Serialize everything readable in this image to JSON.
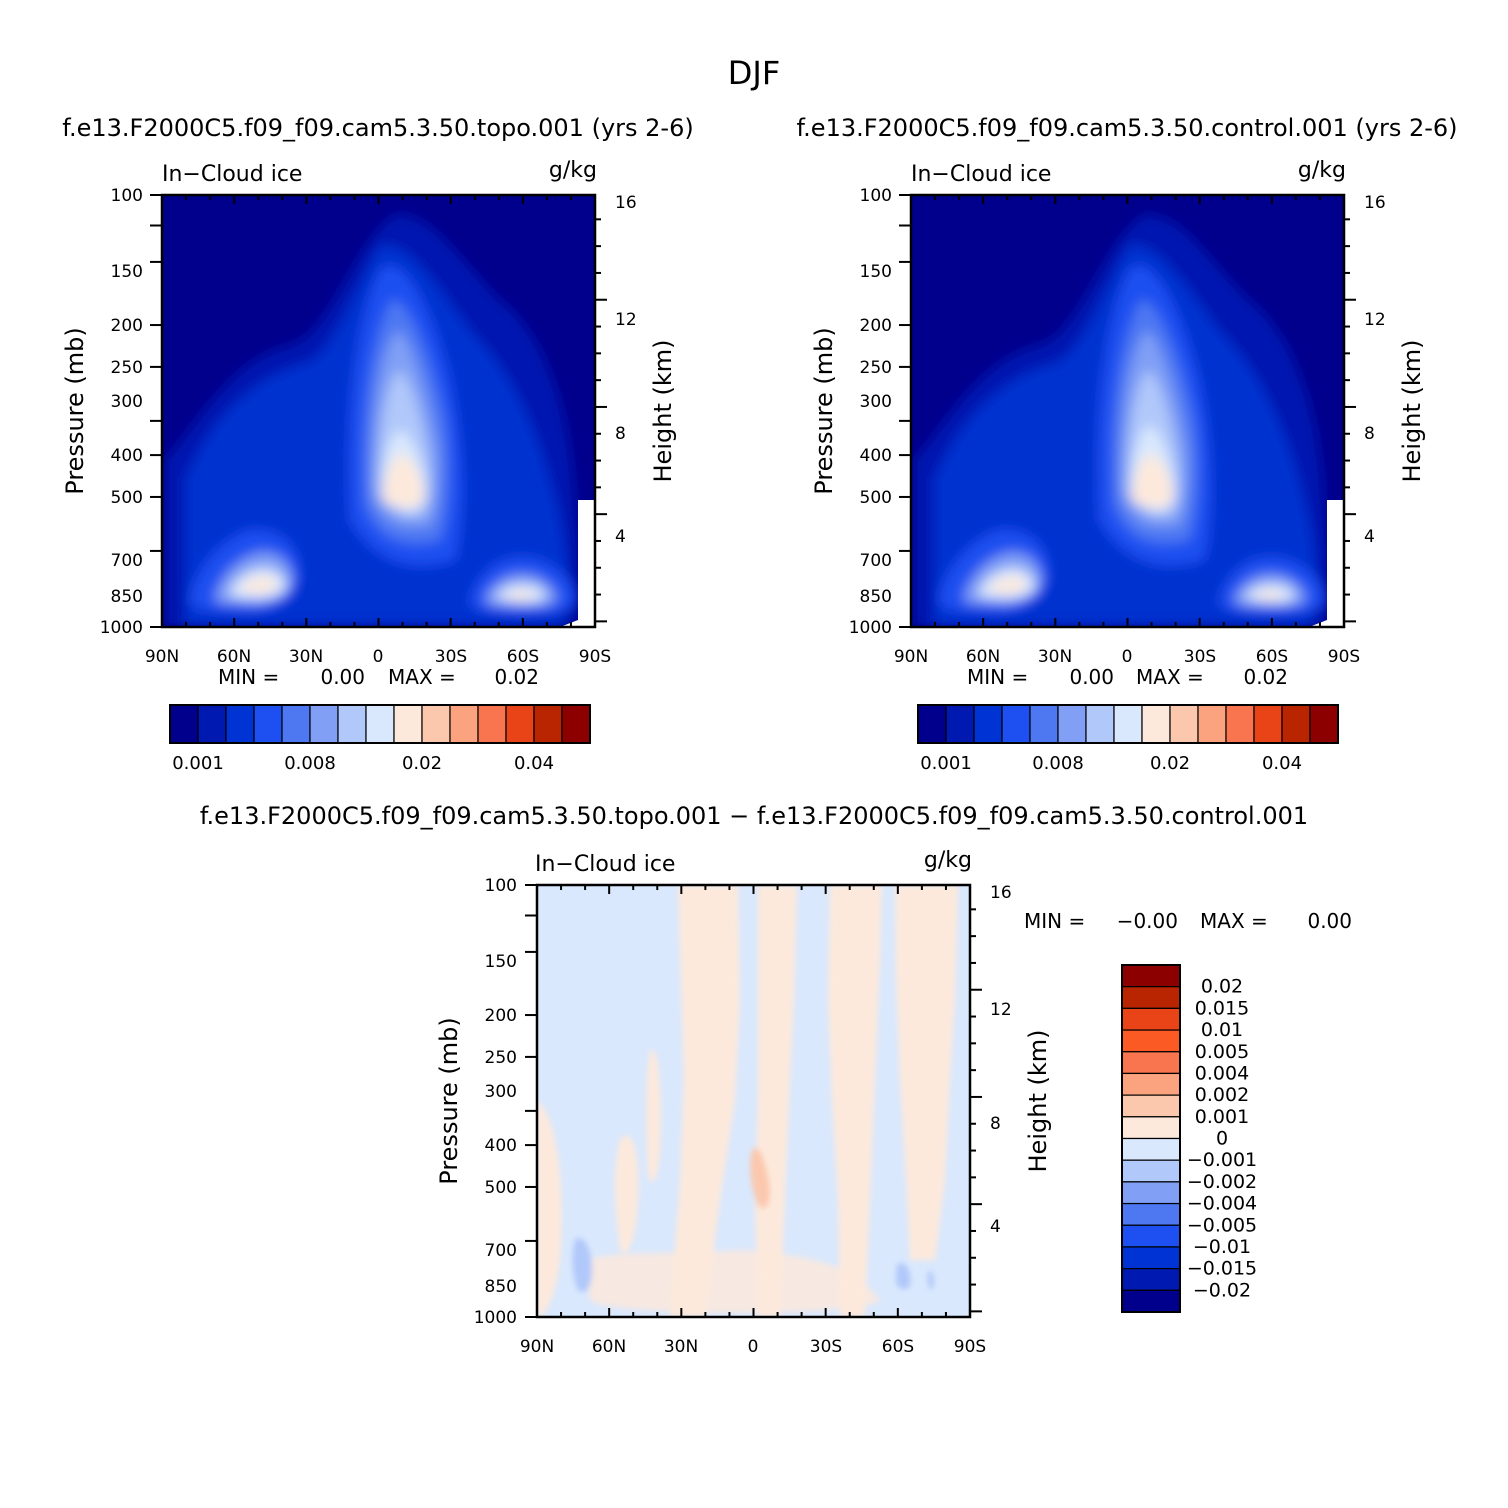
{
  "figure": {
    "title": "DJF",
    "diff_title": "f.e13.F2000C5.f09_f09.cam5.3.50.topo.001 − f.e13.F2000C5.f09_f09.cam5.3.50.control.001"
  },
  "chart_data": [
    {
      "type": "heatmap",
      "id": "topo",
      "title": "f.e13.F2000C5.f09_f09.cam5.3.50.topo.001 (yrs 2-6)",
      "left_label": "In−Cloud ice",
      "units": "g/kg",
      "ylabel": "Pressure (mb)",
      "y2label": "Height (km)",
      "xticks": [
        {
          "value": -90,
          "label": "90N"
        },
        {
          "value": -60,
          "label": "60N"
        },
        {
          "value": -30,
          "label": "30N"
        },
        {
          "value": 0,
          "label": "0"
        },
        {
          "value": 30,
          "label": "30S"
        },
        {
          "value": 60,
          "label": "60S"
        },
        {
          "value": 90,
          "label": "90S"
        }
      ],
      "yticks": [
        100,
        150,
        200,
        250,
        300,
        400,
        500,
        700,
        850,
        1000
      ],
      "y2ticks": [
        4,
        8,
        12,
        16
      ],
      "xlim": [
        -90,
        90
      ],
      "ylim": [
        1000,
        100
      ],
      "min_label": "MIN =",
      "min_value": "0.00",
      "max_label": "MAX =",
      "max_value": "0.02",
      "colorbar": {
        "orientation": "horizontal",
        "colors": [
          "#00008c",
          "#0019b0",
          "#0033d4",
          "#1e4ff0",
          "#4d78f2",
          "#809ff5",
          "#b0c8fa",
          "#d9e8fd",
          "#fde9dc",
          "#fcc8ad",
          "#fba37e",
          "#f87550",
          "#e84417",
          "#b82500",
          "#8c0000"
        ],
        "labels": [
          {
            "index": 1,
            "text": "0.001"
          },
          {
            "index": 5,
            "text": "0.008"
          },
          {
            "index": 9,
            "text": "0.02"
          },
          {
            "index": 13,
            "text": "0.04"
          }
        ]
      }
    },
    {
      "type": "heatmap",
      "id": "control",
      "title": "f.e13.F2000C5.f09_f09.cam5.3.50.control.001 (yrs 2-6)",
      "left_label": "In−Cloud ice",
      "units": "g/kg",
      "ylabel": "Pressure (mb)",
      "y2label": "Height (km)",
      "xticks": [
        {
          "value": -90,
          "label": "90N"
        },
        {
          "value": -60,
          "label": "60N"
        },
        {
          "value": -30,
          "label": "30N"
        },
        {
          "value": 0,
          "label": "0"
        },
        {
          "value": 30,
          "label": "30S"
        },
        {
          "value": 60,
          "label": "60S"
        },
        {
          "value": 90,
          "label": "90S"
        }
      ],
      "yticks": [
        100,
        150,
        200,
        250,
        300,
        400,
        500,
        700,
        850,
        1000
      ],
      "y2ticks": [
        4,
        8,
        12,
        16
      ],
      "xlim": [
        -90,
        90
      ],
      "ylim": [
        1000,
        100
      ],
      "min_label": "MIN =",
      "min_value": "0.00",
      "max_label": "MAX =",
      "max_value": "0.02",
      "colorbar": {
        "orientation": "horizontal",
        "colors": [
          "#00008c",
          "#0019b0",
          "#0033d4",
          "#1e4ff0",
          "#4d78f2",
          "#809ff5",
          "#b0c8fa",
          "#d9e8fd",
          "#fde9dc",
          "#fcc8ad",
          "#fba37e",
          "#f87550",
          "#e84417",
          "#b82500",
          "#8c0000"
        ],
        "labels": [
          {
            "index": 1,
            "text": "0.001"
          },
          {
            "index": 5,
            "text": "0.008"
          },
          {
            "index": 9,
            "text": "0.02"
          },
          {
            "index": 13,
            "text": "0.04"
          }
        ]
      }
    },
    {
      "type": "heatmap",
      "id": "difference",
      "title": "",
      "left_label": "In−Cloud ice",
      "units": "g/kg",
      "ylabel": "Pressure (mb)",
      "y2label": "Height (km)",
      "xticks": [
        {
          "value": -90,
          "label": "90N"
        },
        {
          "value": -60,
          "label": "60N"
        },
        {
          "value": -30,
          "label": "30N"
        },
        {
          "value": 0,
          "label": "0"
        },
        {
          "value": 30,
          "label": "30S"
        },
        {
          "value": 60,
          "label": "60S"
        },
        {
          "value": 90,
          "label": "90S"
        }
      ],
      "yticks": [
        100,
        150,
        200,
        250,
        300,
        400,
        500,
        700,
        850,
        1000
      ],
      "y2ticks": [
        4,
        8,
        12,
        16
      ],
      "xlim": [
        -90,
        90
      ],
      "ylim": [
        1000,
        100
      ],
      "min_label": "MIN =",
      "min_value": "−0.00",
      "max_label": "MAX =",
      "max_value": "0.00",
      "colorbar": {
        "orientation": "vertical",
        "levels": [
          "0.02",
          "0.015",
          "0.01",
          "0.005",
          "0.004",
          "0.002",
          "0.001",
          "0",
          "−0.001",
          "−0.002",
          "−0.004",
          "−0.005",
          "−0.01",
          "−0.015",
          "−0.02"
        ],
        "colors": [
          "#8c0000",
          "#b82500",
          "#e84417",
          "#fc5a24",
          "#f87550",
          "#fba37e",
          "#fcc8ad",
          "#fde9dc",
          "#d9e8fd",
          "#b0c8fa",
          "#809ff5",
          "#4d78f2",
          "#1e4ff0",
          "#0033d4",
          "#0019b0",
          "#00008c"
        ]
      }
    }
  ]
}
